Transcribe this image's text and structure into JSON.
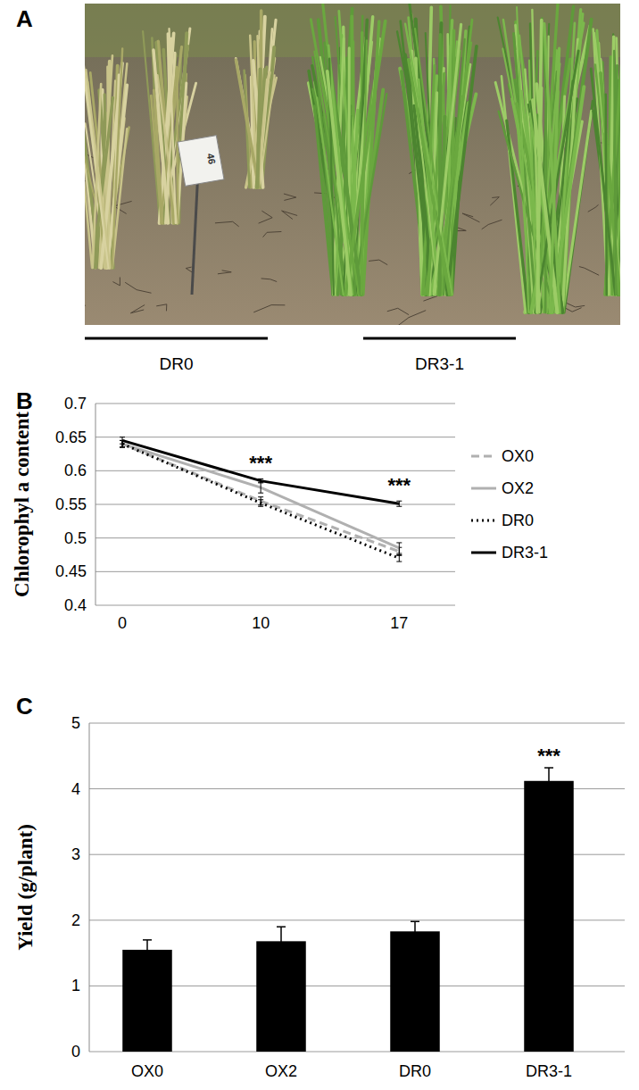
{
  "photo": {
    "panel_label": "A",
    "sign": "46",
    "labels": [
      "DR0",
      "DR3-1"
    ]
  },
  "chart_data": [
    {
      "type": "line",
      "title": "B",
      "y_label": "Chlorophyl a content",
      "categories": [
        "0",
        "10",
        "17"
      ],
      "series": [
        {
          "name": "OX0",
          "color": "#b0b0b0",
          "line_style": "dashed",
          "values": [
            0.64,
            0.555,
            0.48
          ],
          "errors": [
            0.005,
            0.006,
            0.006
          ]
        },
        {
          "name": "OX2",
          "color": "#b0b0b0",
          "line_style": "solid",
          "values": [
            0.64,
            0.575,
            0.485
          ],
          "errors": [
            0.005,
            0.008,
            0.008
          ]
        },
        {
          "name": "DR0",
          "color": "#000000",
          "line_style": "dotted",
          "values": [
            0.64,
            0.552,
            0.47
          ],
          "errors": [
            0.005,
            0.005,
            0.005
          ]
        },
        {
          "name": "DR3-1",
          "color": "#000000",
          "line_style": "solid",
          "values": [
            0.645,
            0.585,
            0.551
          ],
          "errors": [
            0.005,
            0.003,
            0.004
          ]
        }
      ],
      "ylim": [
        0.4,
        0.7
      ],
      "yticks": [
        0.4,
        0.45,
        0.5,
        0.55,
        0.6,
        0.65,
        0.7
      ],
      "grid": true,
      "legend": "right",
      "annotations": [
        {
          "x": "10",
          "text": "***"
        },
        {
          "x": "17",
          "text": "***"
        }
      ]
    },
    {
      "type": "bar",
      "title": "C",
      "y_label": "Yield (g/plant)",
      "categories": [
        "OX0",
        "OX2",
        "DR0",
        "DR3-1"
      ],
      "values": [
        1.55,
        1.68,
        1.83,
        4.12
      ],
      "errors": [
        0.15,
        0.22,
        0.15,
        0.2
      ],
      "color": "#000000",
      "ylim": [
        0,
        5
      ],
      "yticks": [
        0,
        1,
        2,
        3,
        4,
        5
      ],
      "grid": true,
      "annotations": [
        {
          "x": "DR3-1",
          "text": "***"
        }
      ]
    }
  ]
}
